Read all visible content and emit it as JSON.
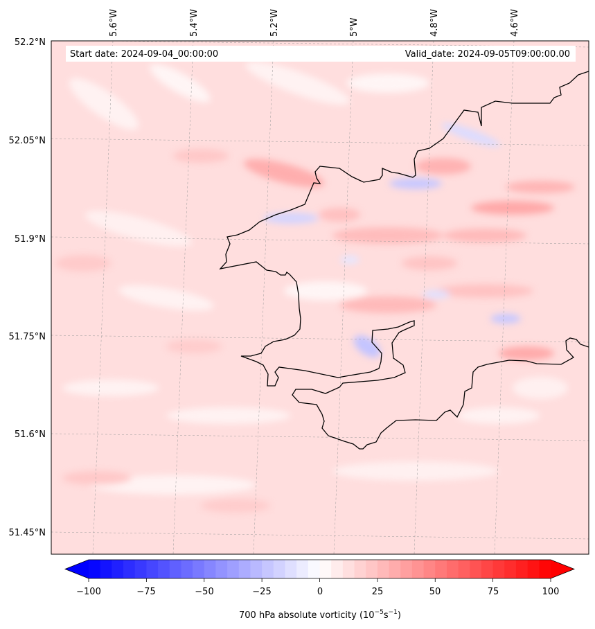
{
  "map": {
    "start_label": "Start date: 2024-09-04_00:00:00",
    "valid_label": "Valid_date: 2024-09-05T09:00:00.00",
    "lat_labels": [
      "52.2°N",
      "52.05°N",
      "51.9°N",
      "51.75°N",
      "51.6°N",
      "51.45°N"
    ],
    "lon_labels": [
      "5.6°W",
      "5.4°W",
      "5.2°W",
      "5°W",
      "4.8°W",
      "4.6°W"
    ],
    "coastline_color": "#000000",
    "gridlines": true,
    "field": "700 hPa absolute vorticity",
    "field_range": [
      -100,
      100
    ],
    "dominant_sign": "positive (weak red shading over most of domain)",
    "negative_patches": "small light-blue patches near the coast"
  },
  "colorbar": {
    "ticks": [
      "−100",
      "−75",
      "−50",
      "−25",
      "0",
      "25",
      "50",
      "75",
      "100"
    ],
    "label_main": "700 hPa absolute vorticity (10",
    "label_exp1": "−5",
    "label_mid": "s",
    "label_exp2": "−1",
    "label_end": ")",
    "cmap": "bwr",
    "min_color": "#0000ff",
    "mid_color": "#ffffff",
    "max_color": "#ff0000",
    "extend": "both"
  }
}
